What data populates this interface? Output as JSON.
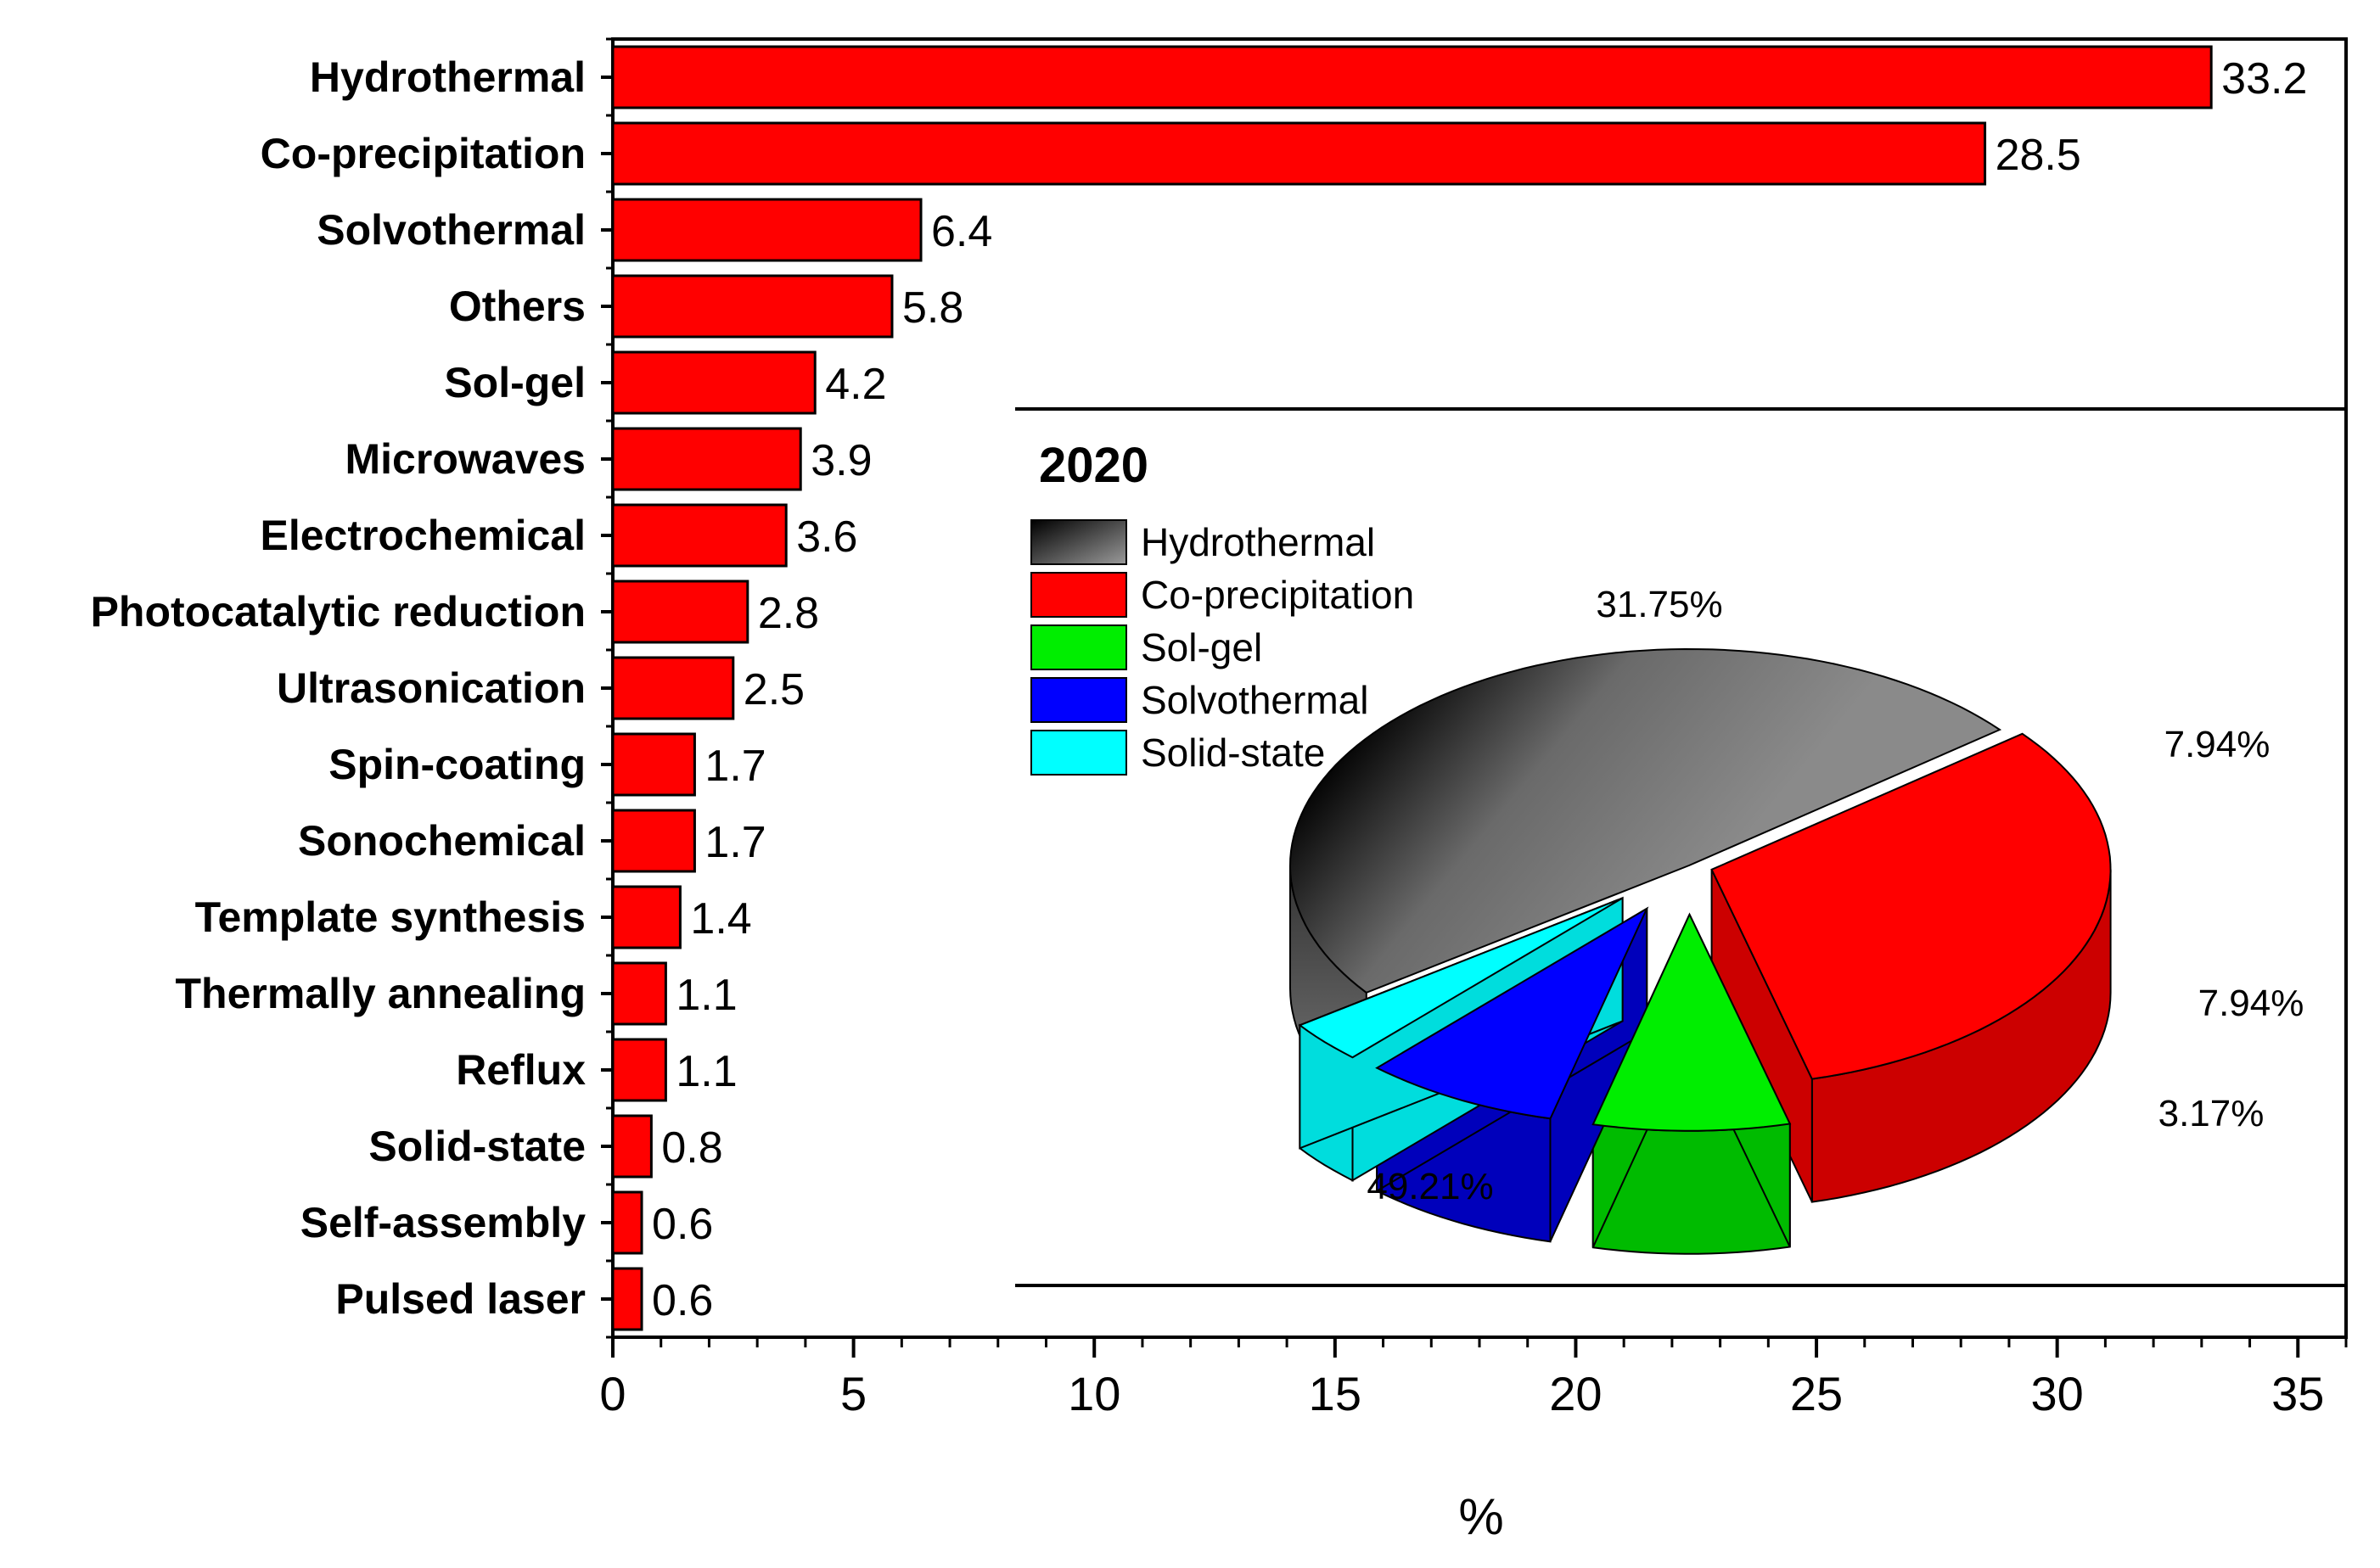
{
  "chart_data": [
    {
      "type": "bar",
      "orientation": "horizontal",
      "categories": [
        "Hydrothermal",
        "Co-precipitation",
        "Solvothermal",
        "Others",
        "Sol-gel",
        "Microwaves",
        "Electrochemical",
        "Photocatalytic reduction",
        "Ultrasonication",
        "Spin-coating",
        "Sonochemical",
        "Template synthesis",
        "Thermally annealing",
        "Reflux",
        "Solid-state",
        "Self-assembly",
        "Pulsed laser"
      ],
      "values": [
        33.2,
        28.5,
        6.4,
        5.8,
        4.2,
        3.9,
        3.6,
        2.8,
        2.5,
        1.7,
        1.7,
        1.4,
        1.1,
        1.1,
        0.8,
        0.6,
        0.6
      ],
      "value_labels": [
        "33.2",
        "28.5",
        "6.4",
        "5.8",
        "4.2",
        "3.9",
        "3.6",
        "2.8",
        "2.5",
        "1.7",
        "1.7",
        "1.4",
        "1.1",
        "1.1",
        "0.8",
        "0.6",
        "0.6"
      ],
      "xlabel": "%",
      "ylabel": "",
      "xlim": [
        0,
        36
      ],
      "xticks": [
        0,
        5,
        10,
        15,
        20,
        25,
        30,
        35
      ],
      "xtick_labels": [
        "0",
        "5",
        "10",
        "15",
        "20",
        "25",
        "30",
        "35"
      ],
      "bar_color": "#ff0000",
      "grid": false
    },
    {
      "type": "pie",
      "style": "3d-exploded",
      "title": "2020",
      "categories": [
        "Hydrothermal",
        "Co-precipitation",
        "Sol-gel",
        "Solvothermal",
        "Solid-state"
      ],
      "values": [
        49.21,
        31.75,
        7.94,
        7.94,
        3.17
      ],
      "value_labels": [
        "49.21%",
        "31.75%",
        "7.94%",
        "7.94%",
        "3.17%"
      ],
      "colors": [
        "#808080",
        "#ff0000",
        "#00ee00",
        "#0000ff",
        "#00ffff"
      ],
      "legend_position": "top-left"
    }
  ]
}
